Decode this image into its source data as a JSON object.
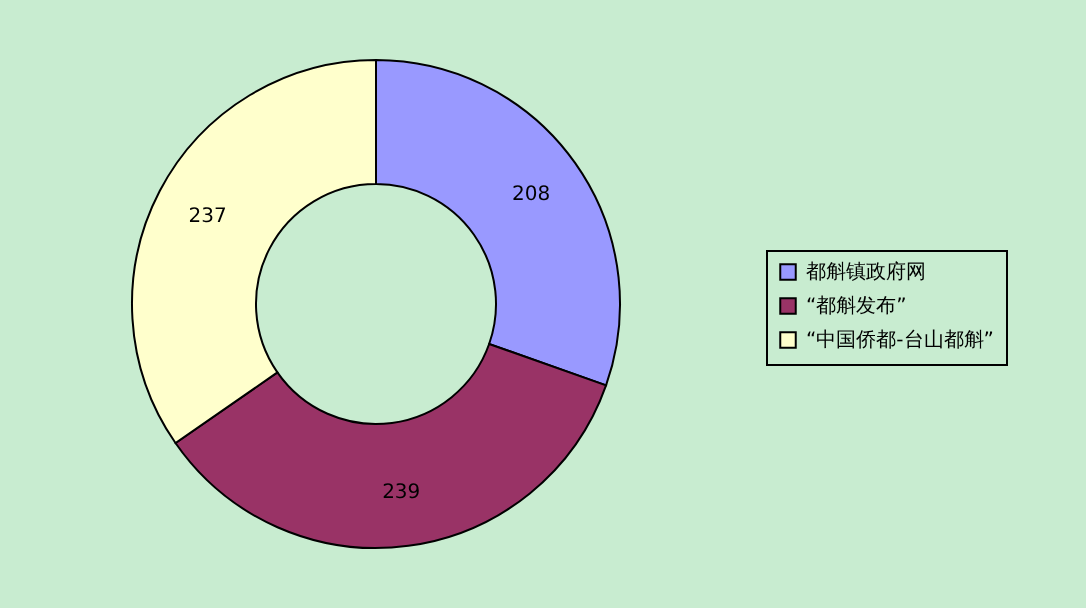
{
  "chart_data": {
    "type": "donut",
    "categories": [
      "都斛镇政府网",
      "“都斛发布”",
      "“中国侨都-台山都斛”"
    ],
    "values": [
      208,
      239,
      237
    ],
    "colors": [
      "#9999ff",
      "#993366",
      "#ffffcc"
    ],
    "data_labels": true,
    "legend": "right"
  }
}
